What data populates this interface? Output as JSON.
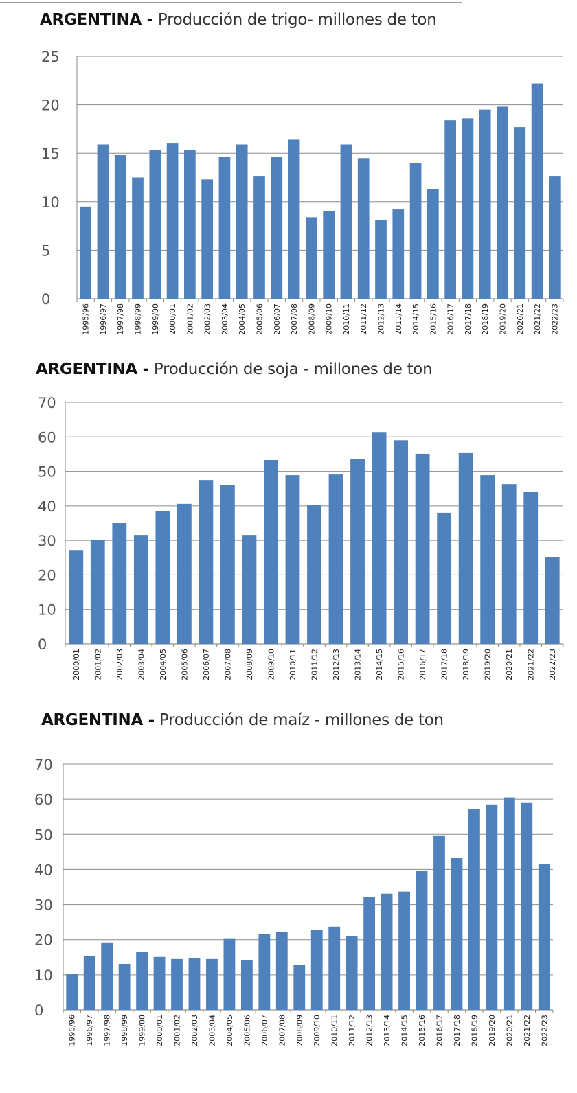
{
  "chart_data": [
    {
      "type": "bar",
      "title_country": "ARGENTINA -",
      "title_rest": "Producción de trigo- millones de ton",
      "xlabel": "",
      "ylabel": "",
      "ylim": [
        0,
        25
      ],
      "yticks": [
        0,
        5,
        10,
        15,
        20,
        25
      ],
      "grid": true,
      "bar_color": "#4f81bd",
      "categories": [
        "1995/96",
        "1996/97",
        "1997/98",
        "1998/99",
        "1999/00",
        "2000/01",
        "2001/02",
        "2002/03",
        "2003/04",
        "2004/05",
        "2005/06",
        "2006/07",
        "2007/08",
        "2008/09",
        "2009/10",
        "2010/11",
        "2011/12",
        "2012/13",
        "2013/14",
        "2014/15",
        "2015/16",
        "2016/17",
        "2017/18",
        "2018/19",
        "2019/20",
        "2020/21",
        "2021/22",
        "2022/23"
      ],
      "values": [
        9.5,
        15.9,
        14.8,
        12.5,
        15.3,
        16.0,
        15.3,
        12.3,
        14.6,
        15.9,
        12.6,
        14.6,
        16.4,
        8.4,
        9.0,
        15.9,
        14.5,
        8.1,
        9.2,
        14.0,
        11.3,
        18.4,
        18.6,
        19.5,
        19.8,
        17.7,
        22.2,
        12.6
      ]
    },
    {
      "type": "bar",
      "title_country": "ARGENTINA -",
      "title_rest": "Producción de soja - millones de ton",
      "xlabel": "",
      "ylabel": "",
      "ylim": [
        0,
        70
      ],
      "yticks": [
        0,
        10,
        20,
        30,
        40,
        50,
        60,
        70
      ],
      "grid": true,
      "bar_color": "#4f81bd",
      "categories": [
        "2000/01",
        "2001/02",
        "2002/03",
        "2003/04",
        "2004/05",
        "2005/06",
        "2006/07",
        "2007/08",
        "2008/09",
        "2009/10",
        "2010/11",
        "2011/12",
        "2012/13",
        "2013/14",
        "2014/15",
        "2015/16",
        "2016/17",
        "2017/18",
        "2018/19",
        "2019/20",
        "2020/21",
        "2021/22",
        "2022/23"
      ],
      "values": [
        27.2,
        30.2,
        35.0,
        31.6,
        38.4,
        40.6,
        47.5,
        46.1,
        31.6,
        53.3,
        48.9,
        40.2,
        49.1,
        53.5,
        61.4,
        59.0,
        55.1,
        38.0,
        55.3,
        48.9,
        46.3,
        44.1,
        25.2
      ]
    },
    {
      "type": "bar",
      "title_country": "ARGENTINA -",
      "title_rest": "Producción de maíz - millones de ton",
      "xlabel": "",
      "ylabel": "",
      "ylim": [
        0,
        70
      ],
      "yticks": [
        0,
        10,
        20,
        30,
        40,
        50,
        60,
        70
      ],
      "grid": true,
      "bar_color": "#4f81bd",
      "categories": [
        "1995/96",
        "1996/97",
        "1997/98",
        "1998/99",
        "1999/00",
        "2000/01",
        "2001/02",
        "2002/03",
        "2003/04",
        "2004/05",
        "2005/06",
        "2006/07",
        "2007/08",
        "2008/09",
        "2009/10",
        "2010/11",
        "2011/12",
        "2012/13",
        "2013/14",
        "2014/15",
        "2015/16",
        "2016/17",
        "2017/18",
        "2018/19",
        "2019/20",
        "2020/21",
        "2021/22",
        "2022/23"
      ],
      "values": [
        10.2,
        15.3,
        19.2,
        13.1,
        16.6,
        15.1,
        14.5,
        14.7,
        14.5,
        20.4,
        14.1,
        21.7,
        22.1,
        12.9,
        22.7,
        23.7,
        21.1,
        32.1,
        33.1,
        33.7,
        39.7,
        49.7,
        43.4,
        57.1,
        58.5,
        60.5,
        59.1,
        41.5
      ]
    }
  ]
}
